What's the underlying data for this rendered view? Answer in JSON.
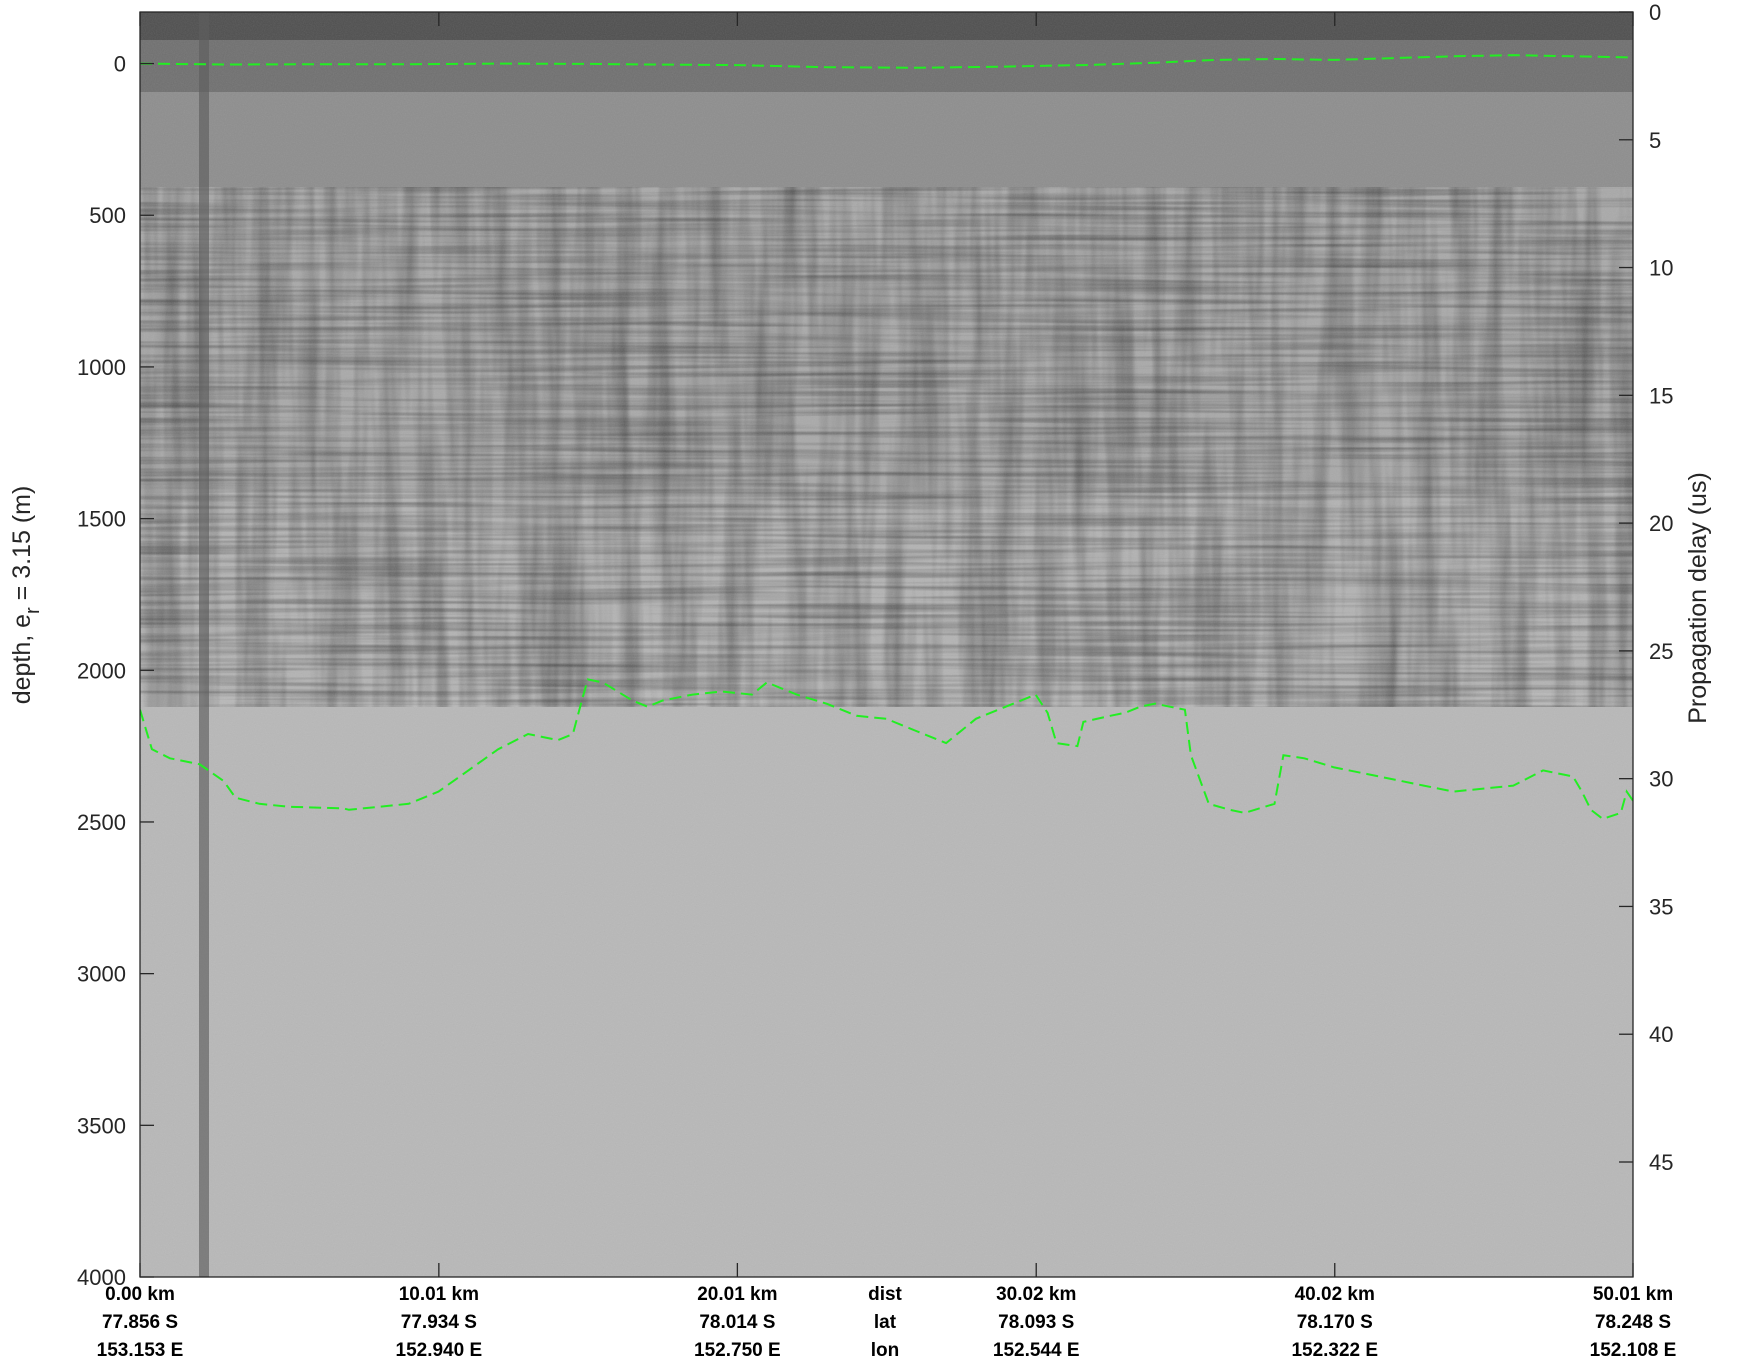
{
  "chart_data": {
    "type": "radargram",
    "ylabel_left": "depth, e",
    "ylabel_left_sub": "r",
    "ylabel_left_suffix": " = 3.15 (m)",
    "ylabel_right": "Propagation delay (us)",
    "ylim_left": [
      -170,
      4000
    ],
    "ylim_right": [
      0,
      49.5
    ],
    "left_ticks": [
      {
        "value": 0,
        "label": "0"
      },
      {
        "value": 500,
        "label": "500"
      },
      {
        "value": 1000,
        "label": "1000"
      },
      {
        "value": 1500,
        "label": "1500"
      },
      {
        "value": 2000,
        "label": "2000"
      },
      {
        "value": 2500,
        "label": "2500"
      },
      {
        "value": 3000,
        "label": "3000"
      },
      {
        "value": 3500,
        "label": "3500"
      },
      {
        "value": 4000,
        "label": "4000"
      }
    ],
    "right_ticks": [
      {
        "value": 0,
        "label": "0"
      },
      {
        "value": 5,
        "label": "5"
      },
      {
        "value": 10,
        "label": "10"
      },
      {
        "value": 15,
        "label": "15"
      },
      {
        "value": 20,
        "label": "20"
      },
      {
        "value": 25,
        "label": "25"
      },
      {
        "value": 30,
        "label": "30"
      },
      {
        "value": 35,
        "label": "35"
      },
      {
        "value": 40,
        "label": "40"
      },
      {
        "value": 45,
        "label": "45"
      }
    ],
    "xlim_km": [
      0,
      50.01
    ],
    "x_ticks": [
      {
        "km": 0.0,
        "dist": "0.00 km",
        "lat": "77.856 S",
        "lon": "153.153 E"
      },
      {
        "km": 10.01,
        "dist": "10.01 km",
        "lat": "77.934 S",
        "lon": "152.940 E"
      },
      {
        "km": 20.01,
        "dist": "20.01 km",
        "lat": "78.014 S",
        "lon": "152.750 E"
      },
      {
        "km": 30.02,
        "dist": "30.02 km",
        "lat": "78.093 S",
        "lon": "152.544 E"
      },
      {
        "km": 40.02,
        "dist": "40.02 km",
        "lat": "78.170 S",
        "lon": "152.322 E"
      },
      {
        "km": 50.01,
        "dist": "50.01 km",
        "lat": "78.248 S",
        "lon": "152.108 E"
      }
    ],
    "row_labels": {
      "dist": "dist",
      "lat": "lat",
      "lon": "lon"
    },
    "surface_pick": {
      "color": "#22ee22",
      "points": [
        [
          0,
          0
        ],
        [
          3,
          3
        ],
        [
          6,
          2
        ],
        [
          9,
          2
        ],
        [
          12,
          0
        ],
        [
          15,
          1
        ],
        [
          17,
          3
        ],
        [
          20,
          5
        ],
        [
          23,
          12
        ],
        [
          26,
          14
        ],
        [
          29,
          10
        ],
        [
          32,
          4
        ],
        [
          34,
          -3
        ],
        [
          36,
          -12
        ],
        [
          38,
          -15
        ],
        [
          40,
          -12
        ],
        [
          42,
          -18
        ],
        [
          44,
          -24
        ],
        [
          46,
          -28
        ],
        [
          48,
          -24
        ],
        [
          50.01,
          -20
        ]
      ]
    },
    "bed_pick": {
      "color": "#22ee22",
      "points": [
        [
          0,
          2130
        ],
        [
          0.4,
          2260
        ],
        [
          1,
          2290
        ],
        [
          2,
          2310
        ],
        [
          2.8,
          2365
        ],
        [
          3.2,
          2420
        ],
        [
          4,
          2440
        ],
        [
          5,
          2450
        ],
        [
          6.8,
          2455
        ],
        [
          7,
          2460
        ],
        [
          8,
          2450
        ],
        [
          9,
          2440
        ],
        [
          10,
          2400
        ],
        [
          11,
          2330
        ],
        [
          12,
          2260
        ],
        [
          13,
          2210
        ],
        [
          14,
          2230
        ],
        [
          14.5,
          2210
        ],
        [
          14.8,
          2100
        ],
        [
          15,
          2030
        ],
        [
          15.5,
          2040
        ],
        [
          16.5,
          2100
        ],
        [
          17,
          2120
        ],
        [
          17.5,
          2100
        ],
        [
          18.5,
          2080
        ],
        [
          19.5,
          2070
        ],
        [
          20.5,
          2080
        ],
        [
          21,
          2040
        ],
        [
          22,
          2080
        ],
        [
          23,
          2110
        ],
        [
          24,
          2150
        ],
        [
          25,
          2160
        ],
        [
          26,
          2200
        ],
        [
          27,
          2240
        ],
        [
          28,
          2160
        ],
        [
          29,
          2120
        ],
        [
          30,
          2080
        ],
        [
          30.4,
          2140
        ],
        [
          30.7,
          2240
        ],
        [
          31.4,
          2250
        ],
        [
          31.6,
          2170
        ],
        [
          32.5,
          2150
        ],
        [
          33,
          2140
        ],
        [
          33.5,
          2120
        ],
        [
          34,
          2110
        ],
        [
          35,
          2130
        ],
        [
          35.2,
          2280
        ],
        [
          35.8,
          2440
        ],
        [
          36.5,
          2460
        ],
        [
          37,
          2470
        ],
        [
          38,
          2440
        ],
        [
          38.3,
          2280
        ],
        [
          39,
          2290
        ],
        [
          40,
          2320
        ],
        [
          41,
          2340
        ],
        [
          42,
          2360
        ],
        [
          43,
          2380
        ],
        [
          44,
          2400
        ],
        [
          45,
          2390
        ],
        [
          46,
          2380
        ],
        [
          47,
          2330
        ],
        [
          48,
          2350
        ],
        [
          48.3,
          2400
        ],
        [
          48.6,
          2460
        ],
        [
          49,
          2490
        ],
        [
          49.6,
          2470
        ],
        [
          49.8,
          2400
        ],
        [
          50.01,
          2430
        ]
      ]
    }
  }
}
